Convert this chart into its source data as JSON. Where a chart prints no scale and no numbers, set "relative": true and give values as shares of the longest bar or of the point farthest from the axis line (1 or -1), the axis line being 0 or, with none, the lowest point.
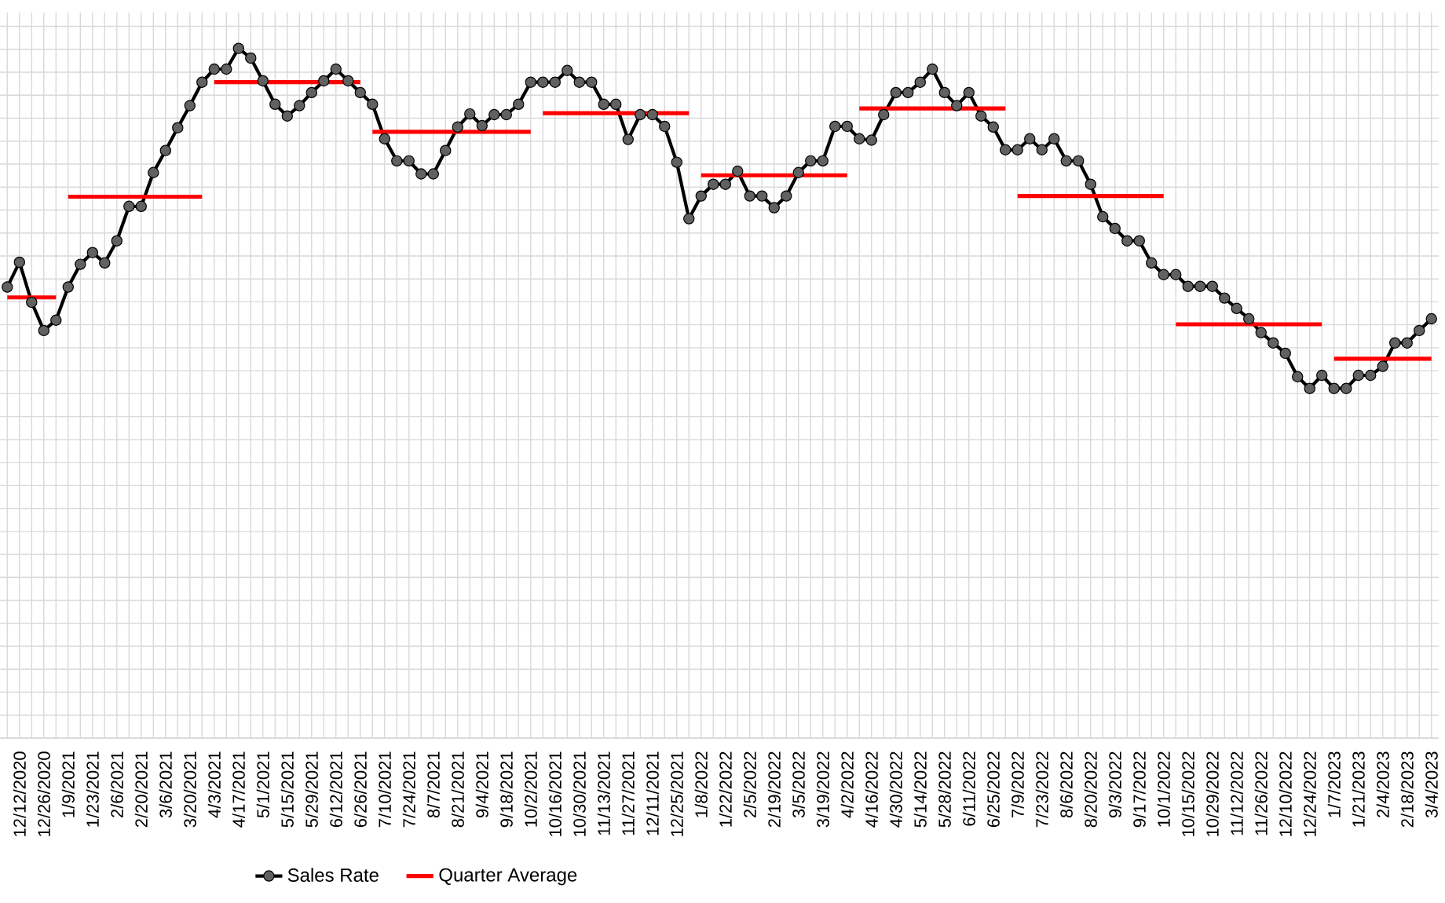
{
  "chart_data": {
    "type": "line",
    "relative": true,
    "grid": true,
    "legend": "bottom",
    "categories": [
      null,
      "12/12/2020",
      null,
      "12/26/2020",
      null,
      "1/9/2021",
      null,
      "1/23/2021",
      null,
      "2/6/2021",
      null,
      "2/20/2021",
      null,
      "3/6/2021",
      null,
      "3/20/2021",
      null,
      "4/3/2021",
      null,
      "4/17/2021",
      null,
      "5/1/2021",
      null,
      "5/15/2021",
      null,
      "5/29/2021",
      null,
      "6/12/2021",
      null,
      "6/26/2021",
      null,
      "7/10/2021",
      null,
      "7/24/2021",
      null,
      "8/7/2021",
      null,
      "8/21/2021",
      null,
      "9/4/2021",
      null,
      "9/18/2021",
      null,
      "10/2/2021",
      null,
      "10/16/2021",
      null,
      "10/30/2021",
      null,
      "11/13/2021",
      null,
      "11/27/2021",
      null,
      "12/11/2021",
      null,
      "12/25/2021",
      null,
      "1/8/2022",
      null,
      "1/22/2022",
      null,
      "2/5/2022",
      null,
      "2/19/2022",
      null,
      "3/5/2022",
      null,
      "3/19/2022",
      null,
      "4/2/2022",
      null,
      "4/16/2022",
      null,
      "4/30/2022",
      null,
      "5/14/2022",
      null,
      "5/28/2022",
      null,
      "6/11/2022",
      null,
      "6/25/2022",
      null,
      "7/9/2022",
      null,
      "7/23/2022",
      null,
      "8/6/2022",
      null,
      "8/20/2022",
      null,
      "9/3/2022",
      null,
      "9/17/2022",
      null,
      "10/1/2022",
      null,
      "10/15/2022",
      null,
      "10/29/2022",
      null,
      "11/12/2022",
      null,
      "11/26/2022",
      null,
      "12/10/2022",
      null,
      "12/24/2022",
      null,
      "1/7/2023",
      null,
      "1/21/2023",
      null,
      "2/4/2023",
      null,
      "2/18/2023",
      null,
      "3/4/2023"
    ],
    "series": [
      {
        "name": "Sales Rate",
        "color": "#000000",
        "marker": "circle",
        "values": [
          0.654,
          0.69,
          0.632,
          0.591,
          0.606,
          0.654,
          0.687,
          0.704,
          0.689,
          0.721,
          0.771,
          0.771,
          0.82,
          0.852,
          0.885,
          0.917,
          0.951,
          0.97,
          0.97,
          1,
          0.986,
          0.953,
          0.919,
          0.902,
          0.917,
          0.936,
          0.953,
          0.97,
          0.953,
          0.936,
          0.919,
          0.869,
          0.837,
          0.837,
          0.818,
          0.818,
          0.852,
          0.886,
          0.905,
          0.888,
          0.904,
          0.904,
          0.919,
          0.951,
          0.951,
          0.951,
          0.968,
          0.951,
          0.951,
          0.919,
          0.919,
          0.868,
          0.904,
          0.904,
          0.887,
          0.835,
          0.753,
          0.786,
          0.803,
          0.803,
          0.822,
          0.786,
          0.786,
          0.769,
          0.786,
          0.82,
          0.837,
          0.837,
          0.887,
          0.887,
          0.869,
          0.867,
          0.904,
          0.936,
          0.936,
          0.951,
          0.97,
          0.936,
          0.917,
          0.936,
          0.902,
          0.886,
          0.853,
          0.853,
          0.869,
          0.853,
          0.869,
          0.837,
          0.837,
          0.803,
          0.756,
          0.739,
          0.721,
          0.721,
          0.689,
          0.672,
          0.672,
          0.655,
          0.655,
          0.655,
          0.638,
          0.623,
          0.608,
          0.588,
          0.573,
          0.558,
          0.524,
          0.507,
          0.526,
          0.507,
          0.507,
          0.526,
          0.526,
          0.539,
          0.573,
          0.573,
          0.591,
          0.608
        ]
      },
      {
        "name": "Quarter Average",
        "color": "#ff0000",
        "marker": "none",
        "values": [
          0.639,
          0.639,
          0.639,
          0.639,
          0.639,
          null,
          null,
          null,
          null,
          null,
          null,
          null,
          null,
          null,
          null,
          null,
          null,
          null,
          null,
          null,
          null,
          null,
          null,
          null,
          null,
          null,
          null,
          null,
          null,
          null,
          null,
          null,
          null,
          null,
          null,
          null,
          null,
          null,
          null,
          null,
          null,
          null,
          null,
          null,
          null,
          null,
          null,
          null,
          null,
          null,
          null,
          null,
          null,
          null,
          null,
          null,
          null,
          null,
          null,
          null,
          null,
          null,
          null,
          null,
          null,
          null,
          null,
          null,
          null,
          null,
          null,
          null,
          null,
          null,
          null,
          null,
          null,
          null,
          null,
          null,
          null,
          null,
          null,
          null,
          null,
          null,
          null,
          null,
          null,
          null,
          null,
          null,
          null,
          null,
          null,
          null,
          null,
          null,
          null,
          null,
          null,
          null,
          null,
          null,
          null,
          null,
          null,
          null,
          null,
          null,
          null,
          null,
          null,
          null,
          null,
          null,
          null,
          null
        ]
      },
      {
        "color": "#ff0000",
        "marker": "none",
        "values": [
          null,
          null,
          null,
          null,
          null,
          0.785,
          0.785,
          0.785,
          0.785,
          0.785,
          0.785,
          0.785,
          0.785,
          0.785,
          0.785,
          0.785,
          0.785,
          null,
          null,
          null,
          null,
          null,
          null,
          null,
          null,
          null,
          null,
          null,
          null,
          null,
          null,
          null,
          null,
          null,
          null,
          null,
          null,
          null,
          null,
          null,
          null,
          null,
          null,
          null,
          null,
          null,
          null,
          null,
          null,
          null,
          null,
          null,
          null,
          null,
          null,
          null,
          null,
          null,
          null,
          null,
          null,
          null,
          null,
          null,
          null,
          null,
          null,
          null,
          null,
          null,
          null,
          null,
          null,
          null,
          null,
          null,
          null,
          null,
          null,
          null,
          null,
          null,
          null,
          null,
          null,
          null,
          null,
          null,
          null,
          null,
          null,
          null,
          null,
          null,
          null,
          null,
          null,
          null,
          null,
          null,
          null,
          null,
          null,
          null,
          null,
          null,
          null,
          null,
          null,
          null,
          null,
          null,
          null,
          null,
          null,
          null,
          null,
          null
        ]
      },
      {
        "color": "#ff0000",
        "marker": "none",
        "values": [
          null,
          null,
          null,
          null,
          null,
          null,
          null,
          null,
          null,
          null,
          null,
          null,
          null,
          null,
          null,
          null,
          null,
          0.951,
          0.951,
          0.951,
          0.951,
          0.951,
          0.951,
          0.951,
          0.951,
          0.951,
          0.951,
          0.951,
          0.951,
          0.951,
          null,
          null,
          null,
          null,
          null,
          null,
          null,
          null,
          null,
          null,
          null,
          null,
          null,
          null,
          null,
          null,
          null,
          null,
          null,
          null,
          null,
          null,
          null,
          null,
          null,
          null,
          null,
          null,
          null,
          null,
          null,
          null,
          null,
          null,
          null,
          null,
          null,
          null,
          null,
          null,
          null,
          null,
          null,
          null,
          null,
          null,
          null,
          null,
          null,
          null,
          null,
          null,
          null,
          null,
          null,
          null,
          null,
          null,
          null,
          null,
          null,
          null,
          null,
          null,
          null,
          null,
          null,
          null,
          null,
          null,
          null,
          null,
          null,
          null,
          null,
          null,
          null,
          null,
          null,
          null,
          null,
          null,
          null,
          null,
          null,
          null,
          null,
          null
        ]
      },
      {
        "color": "#ff0000",
        "marker": "none",
        "values": [
          null,
          null,
          null,
          null,
          null,
          null,
          null,
          null,
          null,
          null,
          null,
          null,
          null,
          null,
          null,
          null,
          null,
          null,
          null,
          null,
          null,
          null,
          null,
          null,
          null,
          null,
          null,
          null,
          null,
          null,
          0.879,
          0.879,
          0.879,
          0.879,
          0.879,
          0.879,
          0.879,
          0.879,
          0.879,
          0.879,
          0.879,
          0.879,
          0.879,
          0.879,
          null,
          null,
          null,
          null,
          null,
          null,
          null,
          null,
          null,
          null,
          null,
          null,
          null,
          null,
          null,
          null,
          null,
          null,
          null,
          null,
          null,
          null,
          null,
          null,
          null,
          null,
          null,
          null,
          null,
          null,
          null,
          null,
          null,
          null,
          null,
          null,
          null,
          null,
          null,
          null,
          null,
          null,
          null,
          null,
          null,
          null,
          null,
          null,
          null,
          null,
          null,
          null,
          null,
          null,
          null,
          null,
          null,
          null,
          null,
          null,
          null,
          null,
          null,
          null,
          null,
          null,
          null,
          null,
          null,
          null,
          null,
          null,
          null,
          null
        ]
      },
      {
        "color": "#ff0000",
        "marker": "none",
        "values": [
          null,
          null,
          null,
          null,
          null,
          null,
          null,
          null,
          null,
          null,
          null,
          null,
          null,
          null,
          null,
          null,
          null,
          null,
          null,
          null,
          null,
          null,
          null,
          null,
          null,
          null,
          null,
          null,
          null,
          null,
          null,
          null,
          null,
          null,
          null,
          null,
          null,
          null,
          null,
          null,
          null,
          null,
          null,
          null,
          0.906,
          0.906,
          0.906,
          0.906,
          0.906,
          0.906,
          0.906,
          0.906,
          0.906,
          0.906,
          0.906,
          0.906,
          0.906,
          null,
          null,
          null,
          null,
          null,
          null,
          null,
          null,
          null,
          null,
          null,
          null,
          null,
          null,
          null,
          null,
          null,
          null,
          null,
          null,
          null,
          null,
          null,
          null,
          null,
          null,
          null,
          null,
          null,
          null,
          null,
          null,
          null,
          null,
          null,
          null,
          null,
          null,
          null,
          null,
          null,
          null,
          null,
          null,
          null,
          null,
          null,
          null,
          null,
          null,
          null,
          null,
          null,
          null,
          null,
          null,
          null,
          null,
          null,
          null,
          null
        ]
      },
      {
        "color": "#ff0000",
        "marker": "none",
        "values": [
          null,
          null,
          null,
          null,
          null,
          null,
          null,
          null,
          null,
          null,
          null,
          null,
          null,
          null,
          null,
          null,
          null,
          null,
          null,
          null,
          null,
          null,
          null,
          null,
          null,
          null,
          null,
          null,
          null,
          null,
          null,
          null,
          null,
          null,
          null,
          null,
          null,
          null,
          null,
          null,
          null,
          null,
          null,
          null,
          null,
          null,
          null,
          null,
          null,
          null,
          null,
          null,
          null,
          null,
          null,
          null,
          null,
          0.816,
          0.816,
          0.816,
          0.816,
          0.816,
          0.816,
          0.816,
          0.816,
          0.816,
          0.816,
          0.816,
          0.816,
          0.816,
          null,
          null,
          null,
          null,
          null,
          null,
          null,
          null,
          null,
          null,
          null,
          null,
          null,
          null,
          null,
          null,
          null,
          null,
          null,
          null,
          null,
          null,
          null,
          null,
          null,
          null,
          null,
          null,
          null,
          null,
          null,
          null,
          null,
          null,
          null,
          null,
          null,
          null,
          null,
          null,
          null,
          null,
          null,
          null,
          null,
          null,
          null,
          null
        ]
      },
      {
        "color": "#ff0000",
        "marker": "none",
        "values": [
          null,
          null,
          null,
          null,
          null,
          null,
          null,
          null,
          null,
          null,
          null,
          null,
          null,
          null,
          null,
          null,
          null,
          null,
          null,
          null,
          null,
          null,
          null,
          null,
          null,
          null,
          null,
          null,
          null,
          null,
          null,
          null,
          null,
          null,
          null,
          null,
          null,
          null,
          null,
          null,
          null,
          null,
          null,
          null,
          null,
          null,
          null,
          null,
          null,
          null,
          null,
          null,
          null,
          null,
          null,
          null,
          null,
          null,
          null,
          null,
          null,
          null,
          null,
          null,
          null,
          null,
          null,
          null,
          null,
          null,
          0.913,
          0.913,
          0.913,
          0.913,
          0.913,
          0.913,
          0.913,
          0.913,
          0.913,
          0.913,
          0.913,
          0.913,
          0.913,
          null,
          null,
          null,
          null,
          null,
          null,
          null,
          null,
          null,
          null,
          null,
          null,
          null,
          null,
          null,
          null,
          null,
          null,
          null,
          null,
          null,
          null,
          null,
          null,
          null,
          null,
          null,
          null,
          null,
          null,
          null,
          null,
          null,
          null,
          null
        ]
      },
      {
        "color": "#ff0000",
        "marker": "none",
        "values": [
          null,
          null,
          null,
          null,
          null,
          null,
          null,
          null,
          null,
          null,
          null,
          null,
          null,
          null,
          null,
          null,
          null,
          null,
          null,
          null,
          null,
          null,
          null,
          null,
          null,
          null,
          null,
          null,
          null,
          null,
          null,
          null,
          null,
          null,
          null,
          null,
          null,
          null,
          null,
          null,
          null,
          null,
          null,
          null,
          null,
          null,
          null,
          null,
          null,
          null,
          null,
          null,
          null,
          null,
          null,
          null,
          null,
          null,
          null,
          null,
          null,
          null,
          null,
          null,
          null,
          null,
          null,
          null,
          null,
          null,
          null,
          null,
          null,
          null,
          null,
          null,
          null,
          null,
          null,
          null,
          null,
          null,
          null,
          0.786,
          0.786,
          0.786,
          0.786,
          0.786,
          0.786,
          0.786,
          0.786,
          0.786,
          0.786,
          0.786,
          0.786,
          0.786,
          null,
          null,
          null,
          null,
          null,
          null,
          null,
          null,
          null,
          null,
          null,
          null,
          null,
          null,
          null,
          null,
          null,
          null,
          null,
          null,
          null,
          null
        ]
      },
      {
        "color": "#ff0000",
        "marker": "none",
        "values": [
          null,
          null,
          null,
          null,
          null,
          null,
          null,
          null,
          null,
          null,
          null,
          null,
          null,
          null,
          null,
          null,
          null,
          null,
          null,
          null,
          null,
          null,
          null,
          null,
          null,
          null,
          null,
          null,
          null,
          null,
          null,
          null,
          null,
          null,
          null,
          null,
          null,
          null,
          null,
          null,
          null,
          null,
          null,
          null,
          null,
          null,
          null,
          null,
          null,
          null,
          null,
          null,
          null,
          null,
          null,
          null,
          null,
          null,
          null,
          null,
          null,
          null,
          null,
          null,
          null,
          null,
          null,
          null,
          null,
          null,
          null,
          null,
          null,
          null,
          null,
          null,
          null,
          null,
          null,
          null,
          null,
          null,
          null,
          null,
          null,
          null,
          null,
          null,
          null,
          null,
          null,
          null,
          null,
          null,
          null,
          null,
          0.6,
          0.6,
          0.6,
          0.6,
          0.6,
          0.6,
          0.6,
          0.6,
          0.6,
          0.6,
          0.6,
          0.6,
          0.6,
          null,
          null,
          null,
          null,
          null,
          null,
          null,
          null,
          null
        ]
      },
      {
        "color": "#ff0000",
        "marker": "none",
        "values": [
          null,
          null,
          null,
          null,
          null,
          null,
          null,
          null,
          null,
          null,
          null,
          null,
          null,
          null,
          null,
          null,
          null,
          null,
          null,
          null,
          null,
          null,
          null,
          null,
          null,
          null,
          null,
          null,
          null,
          null,
          null,
          null,
          null,
          null,
          null,
          null,
          null,
          null,
          null,
          null,
          null,
          null,
          null,
          null,
          null,
          null,
          null,
          null,
          null,
          null,
          null,
          null,
          null,
          null,
          null,
          null,
          null,
          null,
          null,
          null,
          null,
          null,
          null,
          null,
          null,
          null,
          null,
          null,
          null,
          null,
          null,
          null,
          null,
          null,
          null,
          null,
          null,
          null,
          null,
          null,
          null,
          null,
          null,
          null,
          null,
          null,
          null,
          null,
          null,
          null,
          null,
          null,
          null,
          null,
          null,
          null,
          null,
          null,
          null,
          null,
          null,
          null,
          null,
          null,
          null,
          null,
          null,
          null,
          null,
          0.55,
          0.55,
          0.55,
          0.55,
          0.55,
          0.55,
          0.55,
          0.55,
          0.55
        ]
      }
    ]
  }
}
